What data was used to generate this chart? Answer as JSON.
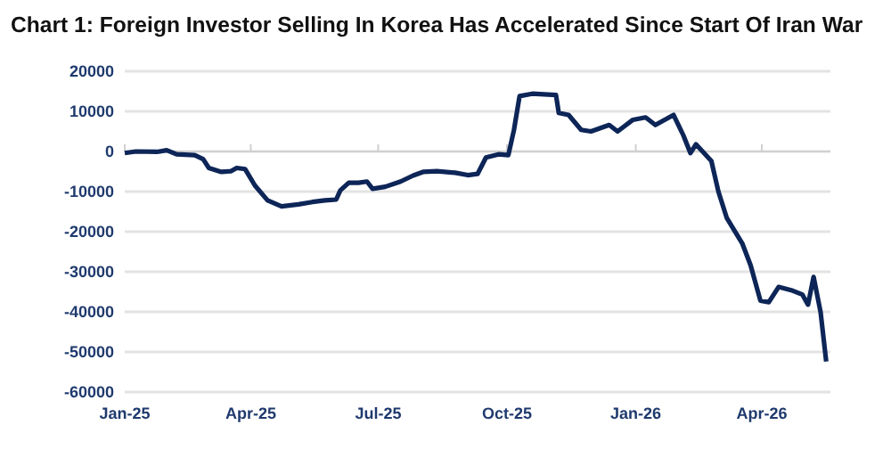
{
  "chart_data": {
    "type": "line",
    "title": "Chart 1: Foreign Investor Selling In Korea Has Accelerated Since Start Of Iran War",
    "x": [
      "2025-01-01",
      "2025-01-09",
      "2025-01-24",
      "2025-01-31",
      "2025-02-07",
      "2025-02-20",
      "2025-02-26",
      "2025-03-02",
      "2025-03-11",
      "2025-03-18",
      "2025-03-22",
      "2025-03-28",
      "2025-04-04",
      "2025-04-13",
      "2025-04-23",
      "2025-05-05",
      "2025-05-15",
      "2025-05-24",
      "2025-06-01",
      "2025-06-04",
      "2025-06-10",
      "2025-06-17",
      "2025-06-23",
      "2025-06-27",
      "2025-07-06",
      "2025-07-17",
      "2025-07-26",
      "2025-08-02",
      "2025-08-12",
      "2025-08-25",
      "2025-09-03",
      "2025-09-10",
      "2025-09-16",
      "2025-09-25",
      "2025-10-02",
      "2025-10-06",
      "2025-10-10",
      "2025-10-19",
      "2025-11-05",
      "2025-11-07",
      "2025-11-14",
      "2025-11-23",
      "2025-11-30",
      "2025-12-13",
      "2025-12-19",
      "2025-12-30",
      "2026-01-08",
      "2026-01-15",
      "2026-01-28",
      "2026-02-04",
      "2026-02-09",
      "2026-02-13",
      "2026-02-24",
      "2026-03-01",
      "2026-03-07",
      "2026-03-18",
      "2026-03-24",
      "2026-03-31",
      "2026-04-06",
      "2026-04-13",
      "2026-04-22",
      "2026-04-30",
      "2026-05-04",
      "2026-05-08",
      "2026-05-13",
      "2026-05-17"
    ],
    "series": [
      {
        "color": "#0d2557",
        "values": [
          -400,
          0,
          -100,
          300,
          -700,
          -900,
          -1900,
          -4100,
          -5100,
          -4900,
          -4100,
          -4400,
          -8500,
          -12200,
          -13700,
          -13200,
          -12600,
          -12200,
          -12000,
          -9700,
          -7800,
          -7800,
          -7500,
          -9300,
          -8800,
          -7500,
          -6000,
          -5100,
          -4900,
          -5300,
          -5900,
          -5600,
          -1500,
          -700,
          -900,
          5400,
          13800,
          14400,
          14100,
          9600,
          9100,
          5400,
          5000,
          6600,
          5000,
          7900,
          8500,
          6600,
          9100,
          4000,
          -400,
          1800,
          -2400,
          -10000,
          -16600,
          -22900,
          -28400,
          -37200,
          -37600,
          -33800,
          -34600,
          -35700,
          -38200,
          -31300,
          -40100,
          -52400
        ]
      }
    ],
    "xlim": [
      "2025-01-01",
      "2026-05-20"
    ],
    "xticks": [
      {
        "value": "2025-01-01",
        "label": "Jan-25"
      },
      {
        "value": "2025-04-01",
        "label": "Apr-25"
      },
      {
        "value": "2025-07-01",
        "label": "Jul-25"
      },
      {
        "value": "2025-10-01",
        "label": "Oct-25"
      },
      {
        "value": "2026-01-01",
        "label": "Jan-26"
      },
      {
        "value": "2026-04-01",
        "label": "Apr-26"
      }
    ],
    "ylim": [
      -60000,
      20000
    ],
    "yticks": [
      -60000,
      -50000,
      -40000,
      -30000,
      -20000,
      -10000,
      0,
      10000,
      20000
    ],
    "grid": "y",
    "marker": "none",
    "line_style": "solid"
  }
}
